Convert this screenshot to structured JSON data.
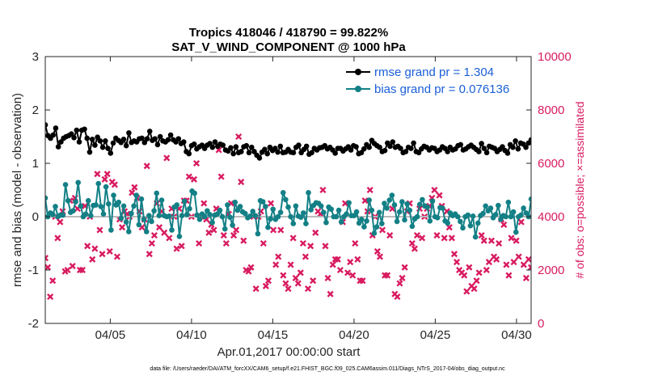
{
  "chart_data": {
    "type": "line",
    "title_line1": "Tropics 418046 / 418790 = 99.822%",
    "title_line2": "SAT_V_WIND_COMPONENT @ 1000 hPa",
    "xlabel": "Apr.01,2017 00:00:00 start",
    "ylabel_left": "rmse and bias (model - observation)",
    "ylabel_right": "# of obs: o=possible; ×=assimilated",
    "xlim": [
      1,
      30.9
    ],
    "ylim_left": [
      -2,
      3
    ],
    "ylim_right": [
      0,
      10000
    ],
    "x_ticks": [
      5,
      10,
      15,
      20,
      25,
      30
    ],
    "x_tick_labels": [
      "04/05",
      "04/10",
      "04/15",
      "04/20",
      "04/25",
      "04/30"
    ],
    "y_left_ticks": [
      -2,
      -1,
      0,
      1,
      2,
      3
    ],
    "y_left_tick_labels": [
      "-2",
      "-1",
      "0",
      "1",
      "2",
      "3"
    ],
    "y_right_ticks": [
      0,
      2000,
      4000,
      6000,
      8000,
      10000
    ],
    "y_right_tick_labels": [
      "0",
      "2000",
      "4000",
      "6000",
      "8000",
      "10000"
    ],
    "zero_line": 0,
    "grid": false,
    "legend": {
      "position": "top-right",
      "entries": [
        "rmse grand pr = 1.304",
        "bias grand pr = 0.076136"
      ]
    },
    "colors": {
      "rmse": "#000000",
      "bias": "#138086",
      "obs": "#d81b60",
      "zero": "#bbbbbb"
    },
    "series": [
      {
        "name": "rmse",
        "label": "rmse grand pr = 1.304",
        "values": [
          1.72,
          1.52,
          1.47,
          1.53,
          1.66,
          1.31,
          1.4,
          1.47,
          1.5,
          1.52,
          1.55,
          1.48,
          1.62,
          1.4,
          1.62,
          1.64,
          1.47,
          1.21,
          1.45,
          1.34,
          1.49,
          1.42,
          1.3,
          1.42,
          1.28,
          1.19,
          1.38,
          1.47,
          1.43,
          1.39,
          1.45,
          1.33,
          1.57,
          1.39,
          1.42,
          1.4,
          1.46,
          1.47,
          1.39,
          1.46,
          1.6,
          1.43,
          1.46,
          1.35,
          1.5,
          1.42,
          1.4,
          1.44,
          1.53,
          1.44,
          1.4,
          1.46,
          1.37,
          1.4,
          1.22,
          1.18,
          1.33,
          1.36,
          1.27,
          1.31,
          1.34,
          1.28,
          1.34,
          1.37,
          1.3,
          1.4,
          1.32,
          1.36,
          1.34,
          1.25,
          1.23,
          1.29,
          1.18,
          1.31,
          1.2,
          1.22,
          1.31,
          1.33,
          1.2,
          1.3,
          1.22,
          1.15,
          1.1,
          1.21,
          1.26,
          1.18,
          1.3,
          1.24,
          1.28,
          1.21,
          1.32,
          1.2,
          1.21,
          1.26,
          1.21,
          1.2,
          1.3,
          1.34,
          1.2,
          1.26,
          1.32,
          1.17,
          1.2,
          1.28,
          1.25,
          1.29,
          1.3,
          1.33,
          1.27,
          1.3,
          1.25,
          1.19,
          1.28,
          1.28,
          1.23,
          1.27,
          1.31,
          1.25,
          1.33,
          1.31,
          1.18,
          1.2,
          1.27,
          1.35,
          1.3,
          1.43,
          1.37,
          1.33,
          1.3,
          1.22,
          1.24,
          1.38,
          1.32,
          1.4,
          1.3,
          1.32,
          1.28,
          1.2,
          1.22,
          1.3,
          1.28,
          1.38,
          1.22,
          1.2,
          1.27,
          1.32,
          1.3,
          1.25,
          1.29,
          1.28,
          1.22,
          1.25,
          1.31,
          1.28,
          1.22,
          1.3,
          1.25,
          1.27,
          1.33,
          1.35,
          1.25,
          1.27,
          1.31,
          1.34,
          1.3,
          1.26,
          1.22,
          1.37,
          1.28,
          1.2,
          1.32,
          1.3,
          1.28,
          1.22,
          1.26,
          1.31,
          1.24,
          1.19,
          1.35,
          1.3,
          1.42,
          1.27,
          1.38,
          1.36,
          1.3,
          1.38,
          1.44
        ]
      },
      {
        "name": "bias",
        "label": "bias grand pr = 0.076136",
        "values": [
          0.35,
          0.0,
          0.07,
          0.04,
          0.19,
          0.0,
          0.03,
          0.03,
          0.6,
          0.3,
          0.08,
          0.11,
          0.28,
          0.64,
          0.2,
          0.0,
          0.05,
          0.3,
          0.02,
          0.21,
          0.22,
          0.62,
          0.19,
          0.05,
          0.56,
          0.24,
          -0.25,
          0.4,
          0.22,
          0.27,
          -0.03,
          0.2,
          -0.1,
          -0.28,
          0.06,
          0.2,
          0.4,
          -0.15,
          0.33,
          -0.05,
          -0.28,
          0.02,
          -0.09,
          0.11,
          0.44,
          0.02,
          0.31,
          0.02,
          0.0,
          0.01,
          -0.25,
          0.18,
          0.22,
          -0.37,
          0.02,
          0.29,
          0.04,
          0.15,
          0.48,
          0.44,
          0.03,
          -0.05,
          0.05,
          0.0,
          0.11,
          0.04,
          -0.11,
          0.03,
          0.05,
          0.12,
          0.0,
          -0.23,
          0.22,
          -0.01,
          -0.16,
          0.27,
          0.12,
          0.19,
          0.09,
          0.06,
          -0.02,
          0.01,
          0.1,
          0.02,
          -0.32,
          0.3,
          0.28,
          0.19,
          -0.2,
          -0.04,
          0.14,
          -0.05,
          0.0,
          0.08,
          0.45,
          0.32,
          0.18,
          0.0,
          -0.13,
          0.2,
          0.01,
          -0.01,
          0.07,
          -0.13,
          0.45,
          0.13,
          0.21,
          0.26,
          0.25,
          0.2,
          0.08,
          -0.11,
          0.18,
          0.14,
          0.0,
          0.0,
          0.12,
          -0.1,
          0.0,
          0.05,
          0.26,
          0.02,
          0.02,
          0.09,
          -0.12,
          -0.05,
          -0.19,
          -0.08,
          0.31,
          0.12,
          -0.31,
          -0.19,
          0.08,
          -0.13,
          0.25,
          0.16,
          0.31,
          0.4,
          0.22,
          -0.09,
          0.09,
          0.28,
          -0.06,
          0.24,
          0.12,
          -0.18,
          -0.04,
          0.0,
          0.23,
          0.32,
          0.2,
          0.18,
          -0.08,
          0.29,
          0.0,
          -0.02,
          0.17,
          0.16,
          -0.08,
          -0.12,
          0.07,
          0.02,
          0.05,
          0.0,
          -0.09,
          -0.21,
          0.0,
          0.03,
          -0.17,
          0.01,
          -0.38,
          -0.12,
          0.02,
          0.06,
          0.2,
          0.11,
          0.16,
          -0.02,
          0.04,
          0.21,
          -0.05,
          0.02,
          0.0,
          0.27,
          0.0,
          0.09,
          -0.29,
          0.0,
          0.03,
          0.16,
          0.07,
          0.0,
          0.33
        ]
      },
      {
        "name": "obs_assimilated",
        "axis": "right",
        "values": [
          2450,
          2100,
          1000,
          1600,
          4000,
          3200,
          3800,
          4200,
          1950,
          2000,
          4600,
          2150,
          4700,
          4300,
          2000,
          2000,
          4400,
          2900,
          4000,
          2400,
          2800,
          5600,
          3500,
          2600,
          5400,
          5600,
          2700,
          5300,
          5200,
          2500,
          3900,
          3600,
          4200,
          4100,
          4000,
          4900,
          5100,
          4700,
          4200,
          3600,
          3900,
          5900,
          2600,
          3000,
          3300,
          4500,
          3600,
          4200,
          3400,
          6200,
          3200,
          4300,
          4000,
          2800,
          4300,
          2900,
          4600,
          4600,
          5500,
          4000,
          5400,
          6000,
          3000,
          4000,
          4500,
          3900,
          3400,
          3700,
          3500,
          4300,
          6500,
          5500,
          3300,
          3000,
          4100,
          4500,
          3300,
          3500,
          7000,
          5300,
          3100,
          2000,
          1950,
          2100,
          4000,
          1300,
          4000,
          4200,
          3000,
          1400,
          1600,
          4500,
          3500,
          2200,
          2500,
          3500,
          1800,
          1500,
          1300,
          2200,
          3200,
          1700,
          1500,
          1900,
          3000,
          2500,
          1300,
          2900,
          1600,
          3400,
          4200,
          4100,
          5000,
          2900,
          1700,
          1100,
          2200,
          2400,
          2400,
          2000,
          3800,
          4500,
          1900,
          2300,
          1800,
          3000,
          2400,
          1600,
          1600,
          4600,
          4200,
          5000,
          3300,
          4000,
          2700,
          2500,
          3500,
          1800,
          1800,
          3300,
          4300,
          1100,
          1000,
          1500,
          1700,
          2100,
          4200,
          4500,
          3000,
          2800,
          3300,
          4300,
          3200,
          4000,
          4300,
          4400,
          4700,
          5000,
          3300,
          4800,
          4400,
          3200,
          4200,
          3600,
          3200,
          2600,
          2300,
          2000,
          1900,
          1800,
          1200,
          2100,
          1400,
          1300,
          1600,
          1900,
          3300,
          3100,
          2000,
          2300,
          3100,
          2500,
          2400,
          3000,
          3900,
          3700,
          2200,
          1800,
          3200,
          2300,
          3100,
          2500,
          3800,
          2200,
          1700,
          2400,
          2100
        ]
      }
    ],
    "note": "All series are plotted at evenly spaced 4-hour intervals spanning the x range."
  },
  "footer": {
    "data_file": "data file: /Users/raeder/DAI/ATM_forcXX/CAM6_setup/f.e21.FHIST_BGC.f09_025.CAM6assim.011/Diags_NTrS_2017-04/obs_diag_output.nc"
  }
}
